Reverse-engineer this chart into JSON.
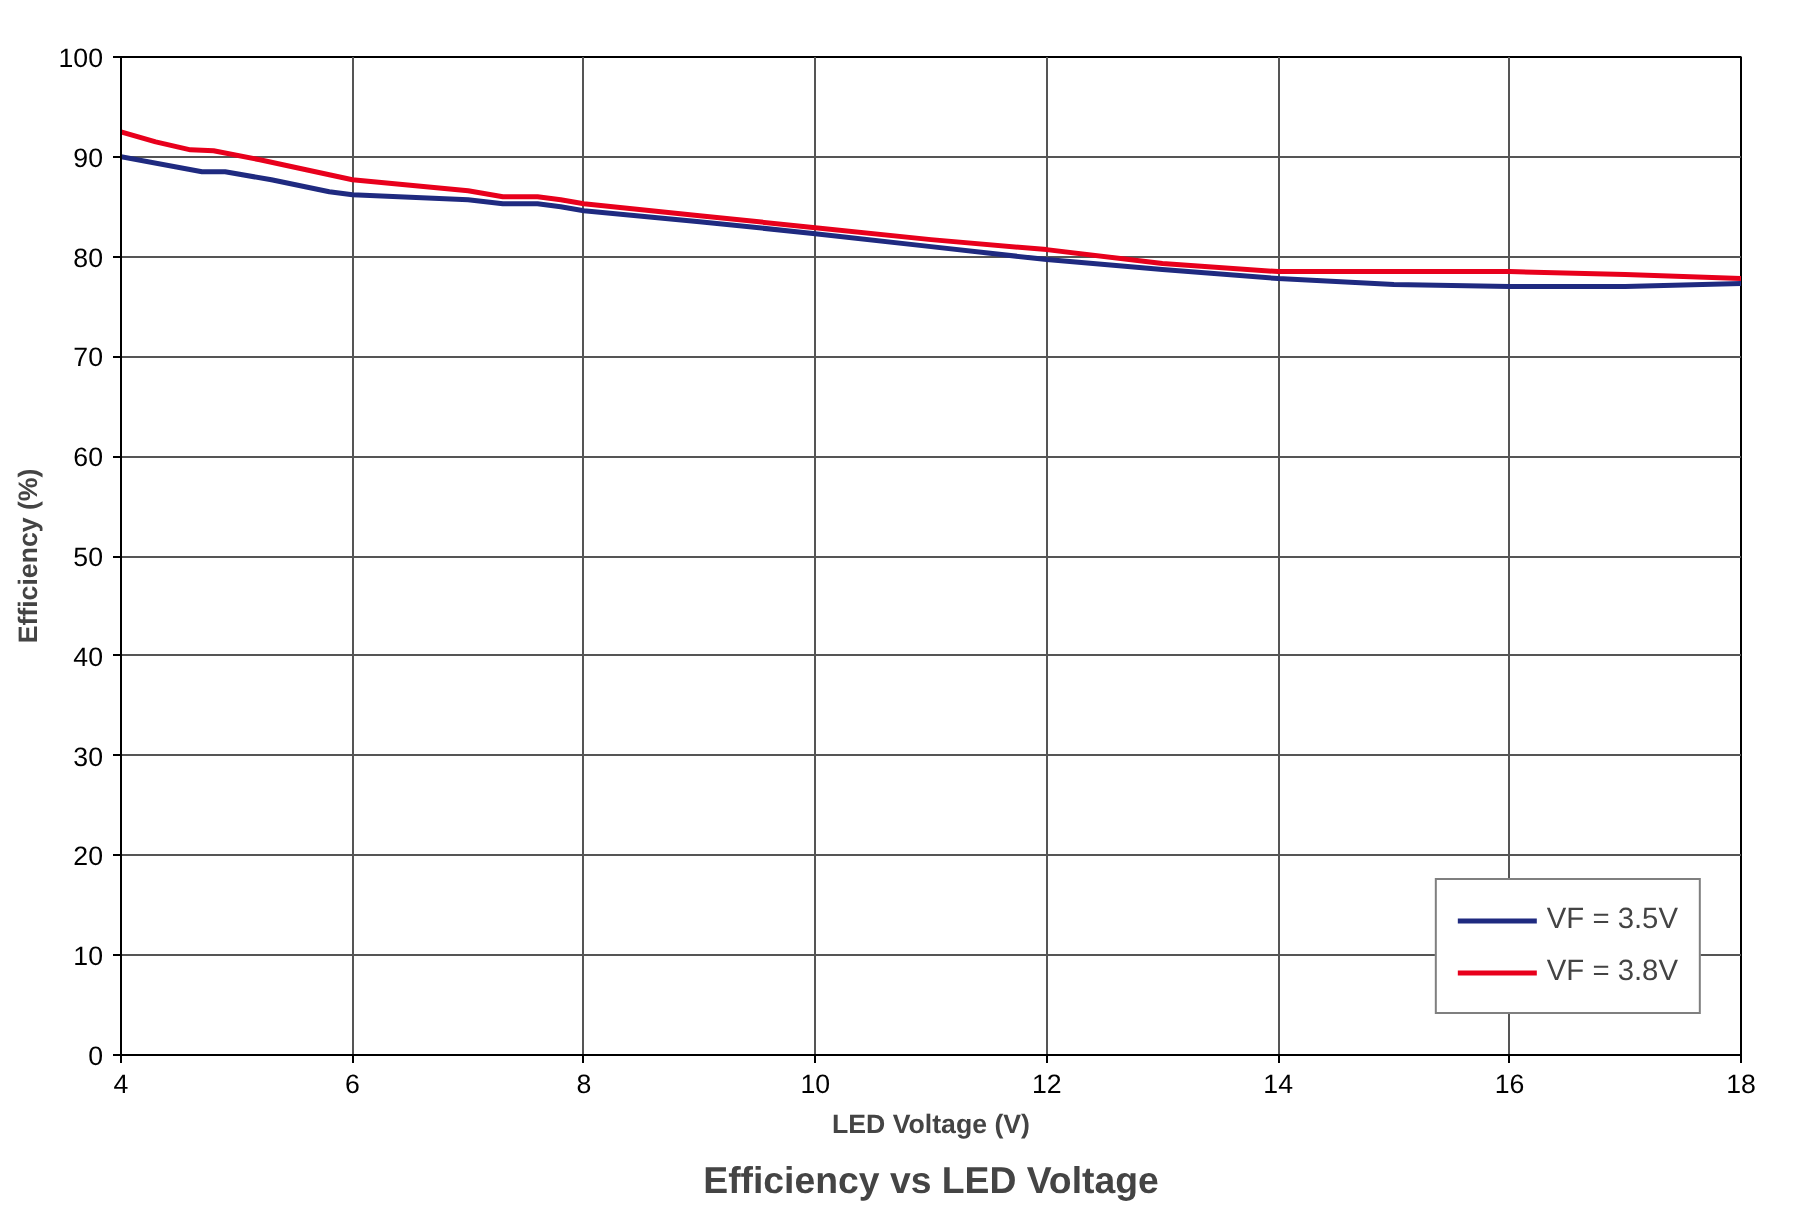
{
  "chart_data": {
    "type": "line",
    "title": "Efficiency vs LED Voltage",
    "xlabel": "LED Voltage (V)",
    "ylabel": "Efficiency (%)",
    "xlim": [
      4,
      18
    ],
    "xticks": [
      4,
      6,
      8,
      10,
      12,
      14,
      16,
      18
    ],
    "ylim": [
      0,
      100
    ],
    "yticks": [
      0,
      10,
      20,
      30,
      40,
      50,
      60,
      70,
      80,
      90,
      100
    ],
    "grid": true,
    "legend": "bottom right",
    "line_style": "solid",
    "marker": "none",
    "series": [
      {
        "name": "VF = 3.5V",
        "color": "#1f2a80",
        "x": [
          4,
          4.7,
          4.9,
          5.3,
          5.8,
          6,
          7,
          7.3,
          7.6,
          7.8,
          8,
          9,
          10,
          11,
          12,
          13,
          14,
          15,
          16,
          17,
          18
        ],
        "values": [
          90,
          88.5,
          88.5,
          87.7,
          86.5,
          86.2,
          85.7,
          85.3,
          85.3,
          85,
          84.6,
          83.5,
          82.3,
          81,
          79.7,
          78.7,
          77.8,
          77.2,
          77,
          77,
          77.3
        ]
      },
      {
        "name": "VF = 3.8V",
        "color": "#e8001c",
        "x": [
          4,
          4.3,
          4.6,
          4.8,
          5.2,
          5.6,
          6,
          7,
          7.3,
          7.6,
          7.8,
          8,
          9,
          10,
          11,
          12,
          13,
          14,
          15,
          16,
          17,
          18
        ],
        "values": [
          92.5,
          91.5,
          90.7,
          90.6,
          89.7,
          88.7,
          87.7,
          86.6,
          86,
          86,
          85.7,
          85.3,
          84.1,
          82.9,
          81.7,
          80.7,
          79.3,
          78.5,
          78.5,
          78.5,
          78.2,
          77.8
        ]
      }
    ]
  }
}
